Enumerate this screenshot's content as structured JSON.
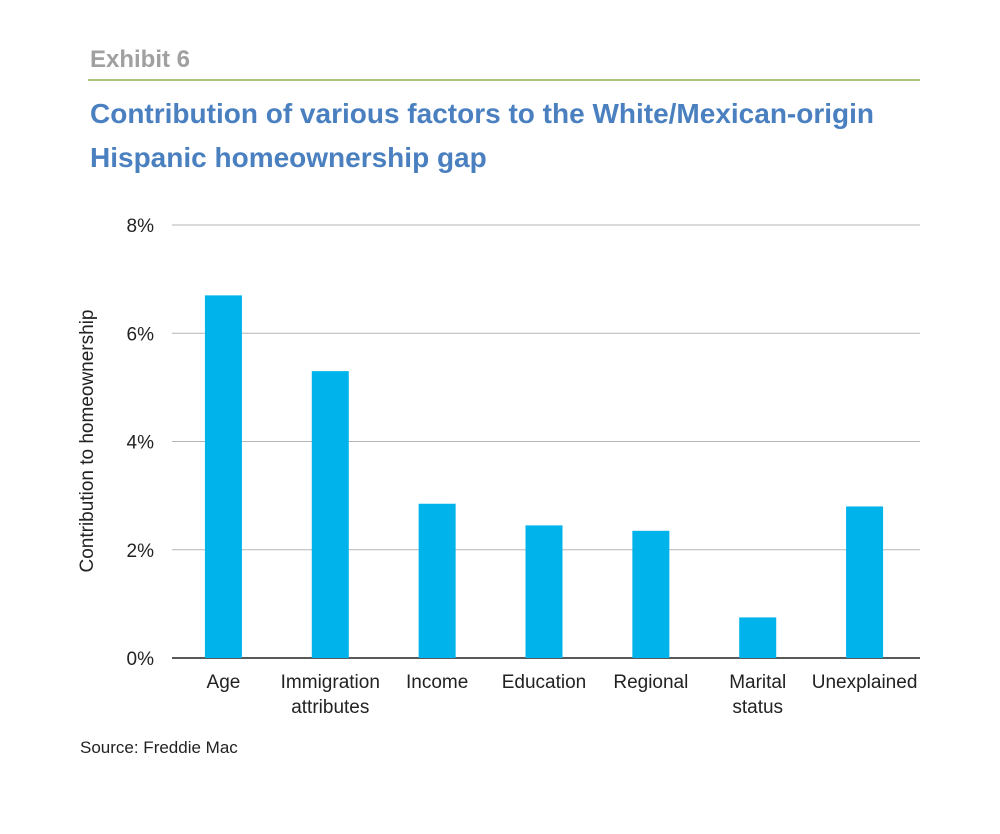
{
  "header": {
    "exhibit": "Exhibit 6",
    "title_lines": [
      "Contribution of various factors to the White/Mexican-origin",
      "Hispanic homeownership gap"
    ]
  },
  "footer": {
    "source": "Source: Freddie Mac"
  },
  "colors": {
    "bar": "#00b3eb",
    "title": "#4a80c0",
    "rule": "#a9c47f",
    "grid": "#b5b5b5"
  },
  "chart_data": {
    "type": "bar",
    "categories": [
      [
        "Age"
      ],
      [
        "Immigration",
        "attributes"
      ],
      [
        "Income"
      ],
      [
        "Education"
      ],
      [
        "Regional"
      ],
      [
        "Marital",
        "status"
      ],
      [
        "Unexplained"
      ]
    ],
    "values": [
      6.7,
      5.3,
      2.85,
      2.45,
      2.35,
      0.75,
      2.8
    ],
    "ylabel": "Contribution to homeownership",
    "ylim": [
      0,
      8
    ],
    "yticks": [
      0,
      2,
      4,
      6,
      8
    ],
    "ytick_labels": [
      "0%",
      "2%",
      "4%",
      "6%",
      "8%"
    ],
    "grid": true
  }
}
